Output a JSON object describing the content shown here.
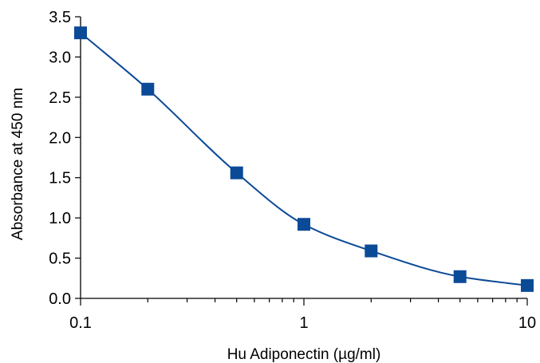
{
  "chart_data": {
    "type": "scatter",
    "title": "",
    "xlabel": "Hu Adiponectin (µg/ml)",
    "ylabel": "Absorbance at 450 nm",
    "x_scale": "log",
    "xlim": [
      0.1,
      10
    ],
    "ylim": [
      0.0,
      3.5
    ],
    "x_ticks": [
      {
        "value": 0.1,
        "label": "0.1"
      },
      {
        "value": 1,
        "label": "1"
      },
      {
        "value": 10,
        "label": "10"
      }
    ],
    "y_ticks": [
      {
        "value": 0.0,
        "label": "0.0"
      },
      {
        "value": 0.5,
        "label": "0.5"
      },
      {
        "value": 1.0,
        "label": "1.0"
      },
      {
        "value": 1.5,
        "label": "1.5"
      },
      {
        "value": 2.0,
        "label": "2.0"
      },
      {
        "value": 2.5,
        "label": "2.5"
      },
      {
        "value": 3.0,
        "label": "3.0"
      },
      {
        "value": 3.5,
        "label": "3.5"
      }
    ],
    "grid": false,
    "legend": "none",
    "series": [
      {
        "marker": "square",
        "fit_line": true,
        "color": "#0b4a97",
        "x": [
          0.1,
          0.2,
          0.5,
          1,
          2,
          5,
          10
        ],
        "y": [
          3.3,
          2.6,
          1.56,
          0.92,
          0.59,
          0.27,
          0.16
        ]
      }
    ]
  }
}
